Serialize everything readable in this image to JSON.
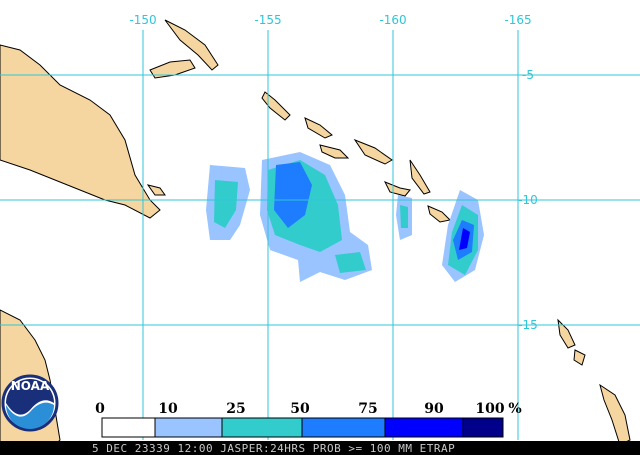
{
  "map": {
    "lon_labels": [
      "-150",
      "-155",
      "-160",
      "-165"
    ],
    "lat_labels": [
      "-5",
      "-10",
      "-15"
    ]
  },
  "legend": {
    "thresholds": [
      "0",
      "10",
      "25",
      "50",
      "75",
      "90",
      "100"
    ],
    "unit": "%",
    "colors": [
      "#ffffff",
      "#99c4ff",
      "#33cccc",
      "#1e7cff",
      "#0000ff",
      "#00008b"
    ]
  },
  "footer": "5 DEC 23339 12:00 JASPER:24HRS PROB >= 100 MM ETRAP",
  "logo": "NOAA"
}
